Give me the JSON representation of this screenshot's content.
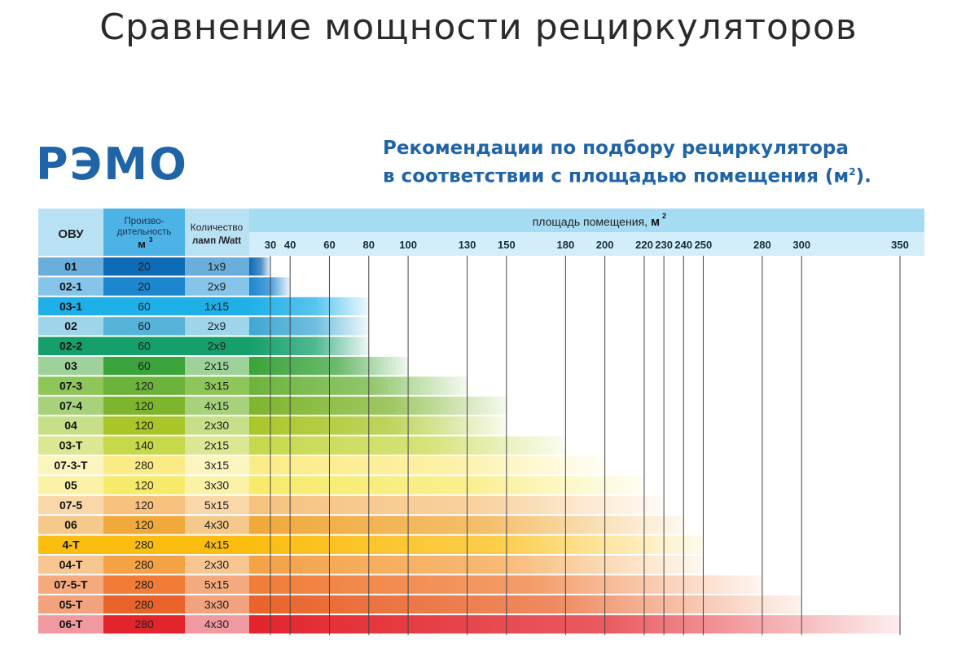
{
  "page": {
    "title": "Сравнение мощности рециркуляторов",
    "logo": "РЭМО",
    "heading_line1": "Рекомендации по подбору рециркулятора",
    "heading_line2": "в соответствии с площадью помещения (м",
    "heading_sup": "2",
    "heading_end": ")."
  },
  "chart_data": {
    "type": "bar",
    "orientation": "horizontal",
    "title": "Рекомендации по подбору рециркулятора в соответствии с площадью помещения (м2).",
    "columns": {
      "model": "ОВУ",
      "perf_line1": "Произво-",
      "perf_line2": "дительность",
      "perf_unit": "м",
      "perf_sup": "3",
      "lamps_line1": "Количество",
      "lamps_line2": "ламп /Watt"
    },
    "xlabel": "площадь помещения,",
    "xlabel_unit": "м",
    "xlabel_sup": "2",
    "x_ticks": [
      30,
      40,
      60,
      80,
      100,
      130,
      150,
      180,
      200,
      220,
      230,
      240,
      250,
      280,
      300,
      350
    ],
    "xlim": [
      20,
      360
    ],
    "grid": true,
    "rows": [
      {
        "model": "01",
        "performance": "20",
        "lamps": "1x9",
        "area": 30,
        "color": "#0e6bb5",
        "label_bg": "#6aaedb",
        "perf_bg": "#0e6bb5"
      },
      {
        "model": "02-1",
        "performance": "20",
        "lamps": "2x9",
        "area": 40,
        "color": "#1c86cf",
        "label_bg": "#86c4e9",
        "perf_bg": "#1c86cf"
      },
      {
        "model": "03-1",
        "performance": "60",
        "lamps": "1x15",
        "area": 80,
        "color": "#1fb0e8",
        "label_bg": "#1fb0e8",
        "perf_bg": "#1fb0e8"
      },
      {
        "model": "02",
        "performance": "60",
        "lamps": "2x9",
        "area": 80,
        "color": "#3ea8d3",
        "label_bg": "#9fd5ea",
        "perf_bg": "#55b2d9"
      },
      {
        "model": "02-2",
        "performance": "60",
        "lamps": "2x9",
        "area": 80,
        "color": "#15a06b",
        "label_bg": "#15a06b",
        "perf_bg": "#15a06b"
      },
      {
        "model": "03",
        "performance": "60",
        "lamps": "2x15",
        "area": 100,
        "color": "#3aa33b",
        "label_bg": "#9ed29a",
        "perf_bg": "#3aa33b"
      },
      {
        "model": "07-3",
        "performance": "120",
        "lamps": "3x15",
        "area": 130,
        "color": "#6bb33a",
        "label_bg": "#8fc65a",
        "perf_bg": "#6bb33a"
      },
      {
        "model": "07-4",
        "performance": "120",
        "lamps": "4x15",
        "area": 150,
        "color": "#7db52d",
        "label_bg": "#a8d17c",
        "perf_bg": "#7db52d"
      },
      {
        "model": "04",
        "performance": "120",
        "lamps": "2x30",
        "area": 150,
        "color": "#a8c628",
        "label_bg": "#c7df88",
        "perf_bg": "#a8c628"
      },
      {
        "model": "03-Т",
        "performance": "140",
        "lamps": "2x15",
        "area": 180,
        "color": "#c7d84a",
        "label_bg": "#dbe793",
        "perf_bg": "#c7d84a"
      },
      {
        "model": "07-3-Т",
        "performance": "280",
        "lamps": "3x15",
        "area": 200,
        "color": "#fbeb87",
        "label_bg": "#fdf5c0",
        "perf_bg": "#fbeb87"
      },
      {
        "model": "05",
        "performance": "120",
        "lamps": "3x30",
        "area": 220,
        "color": "#f7ea6a",
        "label_bg": "#fbf2a8",
        "perf_bg": "#f7ea6a"
      },
      {
        "model": "07-5",
        "performance": "120",
        "lamps": "5x15",
        "area": 230,
        "color": "#f6c27e",
        "label_bg": "#f9d7a8",
        "perf_bg": "#f6c27e"
      },
      {
        "model": "06",
        "performance": "120",
        "lamps": "4x30",
        "area": 240,
        "color": "#f0a93a",
        "label_bg": "#f5c98a",
        "perf_bg": "#f0a93a"
      },
      {
        "model": "4-Т",
        "performance": "280",
        "lamps": "4x15",
        "area": 250,
        "color": "#fbbd10",
        "label_bg": "#fbbd10",
        "perf_bg": "#fbbd10"
      },
      {
        "model": "04-Т",
        "performance": "280",
        "lamps": "2x30",
        "area": 250,
        "color": "#f4a246",
        "label_bg": "#f8c690",
        "perf_bg": "#f4a246"
      },
      {
        "model": "07-5-Т",
        "performance": "280",
        "lamps": "5x15",
        "area": 280,
        "color": "#f07c38",
        "label_bg": "#f5aa7e",
        "perf_bg": "#f07c38"
      },
      {
        "model": "05-Т",
        "performance": "280",
        "lamps": "3x30",
        "area": 300,
        "color": "#e9632a",
        "label_bg": "#f3a27e",
        "perf_bg": "#e9632a"
      },
      {
        "model": "06-Т",
        "performance": "280",
        "lamps": "4x30",
        "area": 350,
        "color": "#e2242c",
        "label_bg": "#f09aa0",
        "perf_bg": "#e2242c"
      }
    ]
  }
}
